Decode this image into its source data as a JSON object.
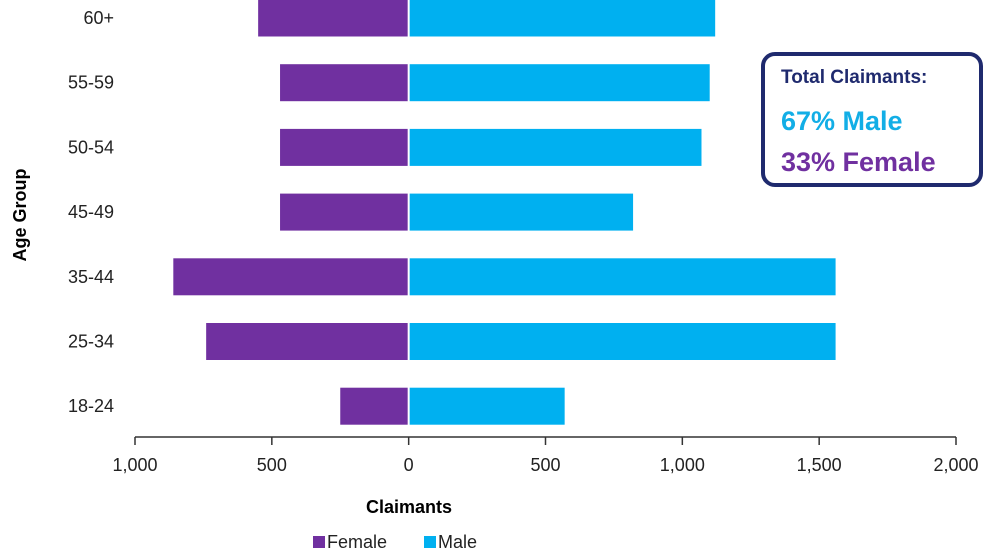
{
  "chart_data": {
    "type": "bar",
    "orientation": "horizontal-diverging",
    "categories": [
      "18-24",
      "25-34",
      "35-44",
      "45-49",
      "50-54",
      "55-59",
      "60+"
    ],
    "series": [
      {
        "name": "Female",
        "values": [
          250,
          740,
          860,
          470,
          470,
          470,
          550
        ],
        "color": "#7030a0"
      },
      {
        "name": "Male",
        "values": [
          570,
          1560,
          1560,
          820,
          1070,
          1100,
          1120
        ],
        "color": "#00b0f0"
      }
    ],
    "xlabel": "Claimants",
    "ylabel": "Age Group",
    "xlim": [
      -1000,
      2000
    ],
    "xticks": [
      {
        "value": -1000,
        "label": "1,000"
      },
      {
        "value": -500,
        "label": "500"
      },
      {
        "value": 0,
        "label": "0"
      },
      {
        "value": 500,
        "label": "500"
      },
      {
        "value": 1000,
        "label": "1,000"
      },
      {
        "value": 1500,
        "label": "1,500"
      },
      {
        "value": 2000,
        "label": "2,000"
      }
    ],
    "grid": false,
    "legend_position": "bottom"
  },
  "callout": {
    "title": "Total Claimants:",
    "male_text": "67% Male",
    "female_text": "33% Female"
  }
}
